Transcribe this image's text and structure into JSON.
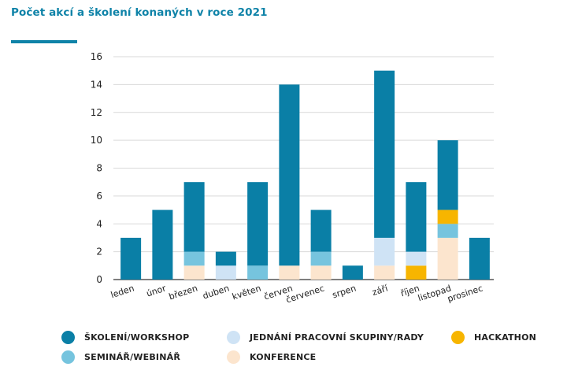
{
  "title": "Počet akcí a školení konaných v roce 2021",
  "colors": {
    "skoleni": "#0a7fa6",
    "seminar": "#76c4de",
    "jednani": "#cfe3f5",
    "konference": "#fce5ce",
    "hackathon": "#f7b500",
    "grid": "#d9d9d9",
    "axis": "#333333",
    "title": "#0f83a8"
  },
  "chart_data": {
    "type": "bar",
    "stacked": true,
    "title": "Počet akcí a školení konaných v roce 2021",
    "categories": [
      "leden",
      "únor",
      "březen",
      "duben",
      "květen",
      "červen",
      "červenec",
      "srpen",
      "září",
      "říjen",
      "listopad",
      "prosinec"
    ],
    "ylim": [
      0,
      16
    ],
    "yticks": [
      0,
      2,
      4,
      6,
      8,
      10,
      12,
      14,
      16
    ],
    "grid": true,
    "series": [
      {
        "key": "konference",
        "name": "KONFERENCE",
        "values": [
          0,
          0,
          1,
          0,
          0,
          1,
          1,
          0,
          1,
          0,
          3,
          0
        ]
      },
      {
        "key": "hackathon",
        "name": "HACKATHON",
        "values": [
          0,
          0,
          0,
          0,
          0,
          0,
          0,
          0,
          0,
          1,
          0,
          0
        ]
      },
      {
        "key": "seminar",
        "name": "SEMINÁŘ/WEBINÁŘ",
        "values": [
          0,
          0,
          1,
          0,
          1,
          0,
          1,
          0,
          0,
          0,
          1,
          0
        ]
      },
      {
        "key": "jednani",
        "name": "JEDNÁNÍ PRACOVNÍ SKUPINY/RADY",
        "values": [
          0,
          0,
          0,
          1,
          0,
          0,
          0,
          0,
          2,
          1,
          0,
          0
        ]
      },
      {
        "key": "hackathon",
        "name": "HACKATHON",
        "values": [
          0,
          0,
          0,
          0,
          0,
          0,
          0,
          0,
          0,
          0,
          1,
          0
        ]
      },
      {
        "key": "skoleni",
        "name": "ŠKOLENÍ/WORKSHOP",
        "values": [
          3,
          5,
          5,
          1,
          6,
          13,
          3,
          1,
          12,
          5,
          5,
          3
        ]
      }
    ],
    "legend": [
      {
        "key": "skoleni",
        "label": "ŠKOLENÍ/WORKSHOP"
      },
      {
        "key": "jednani",
        "label": "JEDNÁNÍ PRACOVNÍ SKUPINY/RADY"
      },
      {
        "key": "hackathon",
        "label": "HACKATHON"
      },
      {
        "key": "seminar",
        "label": "SEMINÁŘ/WEBINÁŘ"
      },
      {
        "key": "konference",
        "label": "KONFERENCE"
      }
    ],
    "legend_position": "bottom"
  }
}
